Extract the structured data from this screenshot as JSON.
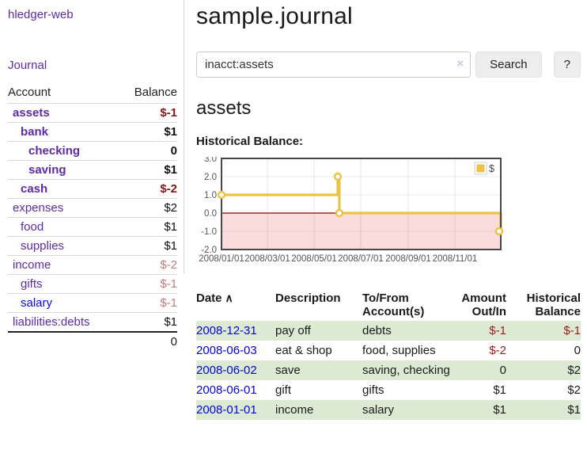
{
  "app": {
    "title": "hledger-web",
    "journal_link": "Journal"
  },
  "colors": {
    "link_purple": "#5e2ba6",
    "link_blue": "#0909e8",
    "negative_strong": "#8e1414",
    "negative_soft": "#c17d7d",
    "row_stripe_green": "#dcead3",
    "chart_line_yellow": "#edc240",
    "chart_negative_fill": "#fbdcdc",
    "chart_zero_line": "#8b0000"
  },
  "sidebar": {
    "col_account": "Account",
    "col_balance": "Balance",
    "accounts": [
      {
        "name": "assets",
        "balance": "$-1",
        "depth": 1,
        "bold": true,
        "balance_style": "neg-strong"
      },
      {
        "name": "bank",
        "balance": "$1",
        "depth": 2,
        "bold": true,
        "balance_style": "pos"
      },
      {
        "name": "checking",
        "balance": "0",
        "depth": 3,
        "bold": true,
        "balance_style": "pos"
      },
      {
        "name": "saving",
        "balance": "$1",
        "depth": 3,
        "bold": true,
        "balance_style": "pos"
      },
      {
        "name": "cash",
        "balance": "$-2",
        "depth": 2,
        "bold": true,
        "balance_style": "neg-strong"
      },
      {
        "name": "expenses",
        "balance": "$2",
        "depth": 1,
        "bold": false,
        "balance_style": "pos"
      },
      {
        "name": "food",
        "balance": "$1",
        "depth": 2,
        "bold": false,
        "balance_style": "pos"
      },
      {
        "name": "supplies",
        "balance": "$1",
        "depth": 2,
        "bold": false,
        "balance_style": "pos"
      },
      {
        "name": "income",
        "balance": "$-2",
        "depth": 1,
        "bold": false,
        "balance_style": "neg-soft"
      },
      {
        "name": "gifts",
        "balance": "$-1",
        "depth": 2,
        "bold": false,
        "balance_style": "neg-soft"
      },
      {
        "name": "salary",
        "balance": "$-1",
        "depth": 2,
        "bold": false,
        "balance_style": "neg-soft",
        "link": "blue"
      },
      {
        "name": "liabilities:debts",
        "balance": "$1",
        "depth": 1,
        "bold": false,
        "balance_style": "pos"
      }
    ],
    "total": "0"
  },
  "main": {
    "title": "sample.journal",
    "search": {
      "value": "inacct:assets",
      "clear_icon": "×",
      "search_button": "Search",
      "help_button": "?"
    },
    "account_heading": "assets",
    "chart_label": "Historical Balance:"
  },
  "chart_data": {
    "type": "line",
    "step": true,
    "title": "Historical Balance:",
    "series": [
      {
        "name": "$",
        "color": "#edc240",
        "points": [
          [
            "2008-01-01",
            1.0
          ],
          [
            "2008-06-01",
            2.0
          ],
          [
            "2008-06-03",
            0.0
          ],
          [
            "2008-12-31",
            -1.0
          ]
        ]
      }
    ],
    "x_range": [
      "2008-01-01",
      "2008-12-31"
    ],
    "ylim": [
      -2.0,
      3.0
    ],
    "ytick_labels": [
      "3.0",
      "2.0",
      "1.0",
      "0.0",
      "-1.0",
      "-2.0"
    ],
    "xtick_labels": [
      "2008/01/01",
      "2008/03/01",
      "2008/05/01",
      "2008/07/01",
      "2008/09/01",
      "2008/11/01"
    ],
    "legend": {
      "label": "$",
      "position": "top-right"
    },
    "grid": true,
    "negative_region": {
      "below": 0.0,
      "fill": "#fbdcdc",
      "line_color": "#8b0000"
    }
  },
  "register": {
    "columns": [
      "Date",
      "Description",
      "To/From Account(s)",
      "Amount Out/In",
      "Historical Balance"
    ],
    "sort_icon": "∧",
    "rows": [
      {
        "date": "2008-12-31",
        "description": "pay off",
        "accounts": "debts",
        "amount": "$-1",
        "balance": "$-1",
        "amount_negative": true,
        "balance_negative": true,
        "shaded": true
      },
      {
        "date": "2008-06-03",
        "description": "eat & shop",
        "accounts": "food, supplies",
        "amount": "$-2",
        "balance": "0",
        "amount_negative": true,
        "balance_negative": false,
        "shaded": false
      },
      {
        "date": "2008-06-02",
        "description": "save",
        "accounts": "saving, checking",
        "amount": "0",
        "balance": "$2",
        "amount_negative": false,
        "balance_negative": false,
        "shaded": true
      },
      {
        "date": "2008-06-01",
        "description": "gift",
        "accounts": "gifts",
        "amount": "$1",
        "balance": "$2",
        "amount_negative": false,
        "balance_negative": false,
        "shaded": false
      },
      {
        "date": "2008-01-01",
        "description": "income",
        "accounts": "salary",
        "amount": "$1",
        "balance": "$1",
        "amount_negative": false,
        "balance_negative": false,
        "shaded": true
      }
    ]
  }
}
